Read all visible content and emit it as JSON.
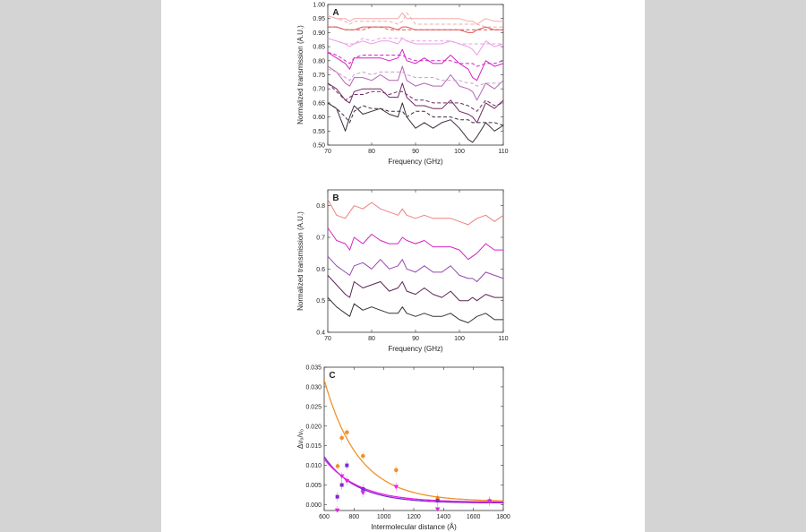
{
  "chart_data": [
    {
      "panel": "A",
      "type": "line",
      "xlabel": "Frequency (GHz)",
      "ylabel": "Normalized transmission (A.U.)",
      "xlim": [
        70,
        110
      ],
      "ylim": [
        0.5,
        1.0
      ],
      "xticks": [
        "70",
        "80",
        "90",
        "100",
        "110"
      ],
      "yticks": [
        "0.50",
        "0.55",
        "0.60",
        "0.65",
        "0.70",
        "0.75",
        "0.80",
        "0.85",
        "0.90",
        "0.95",
        "1.00"
      ],
      "x": [
        70,
        72,
        74,
        75,
        76,
        78,
        80,
        82,
        84,
        86,
        87,
        88,
        90,
        92,
        94,
        96,
        98,
        100,
        102,
        103,
        104,
        106,
        108,
        110
      ],
      "series": [
        {
          "color": "#3a2d3a",
          "style": "solid",
          "values": [
            0.65,
            0.63,
            0.55,
            0.6,
            0.64,
            0.61,
            0.62,
            0.63,
            0.61,
            0.6,
            0.65,
            0.6,
            0.56,
            0.58,
            0.56,
            0.58,
            0.59,
            0.56,
            0.52,
            0.51,
            0.53,
            0.58,
            0.55,
            0.57
          ]
        },
        {
          "color": "#3a2d3a",
          "style": "dashed",
          "values": [
            0.65,
            0.63,
            0.6,
            0.58,
            0.62,
            0.64,
            0.63,
            0.63,
            0.62,
            0.62,
            0.62,
            0.6,
            0.62,
            0.62,
            0.6,
            0.6,
            0.6,
            0.59,
            0.59,
            0.58,
            0.58,
            0.58,
            0.58,
            0.57
          ]
        },
        {
          "color": "#6e2a60",
          "style": "solid",
          "values": [
            0.72,
            0.7,
            0.66,
            0.65,
            0.69,
            0.7,
            0.7,
            0.7,
            0.67,
            0.67,
            0.72,
            0.67,
            0.64,
            0.64,
            0.63,
            0.63,
            0.66,
            0.62,
            0.61,
            0.6,
            0.58,
            0.65,
            0.63,
            0.66
          ]
        },
        {
          "color": "#6e2a60",
          "style": "dashed",
          "values": [
            0.72,
            0.69,
            0.66,
            0.67,
            0.68,
            0.68,
            0.69,
            0.69,
            0.68,
            0.69,
            0.69,
            0.68,
            0.66,
            0.66,
            0.65,
            0.65,
            0.65,
            0.65,
            0.64,
            0.63,
            0.62,
            0.66,
            0.64,
            0.65
          ]
        },
        {
          "color": "#b464b4",
          "style": "solid",
          "values": [
            0.78,
            0.76,
            0.72,
            0.71,
            0.74,
            0.74,
            0.73,
            0.75,
            0.73,
            0.73,
            0.78,
            0.73,
            0.71,
            0.72,
            0.71,
            0.71,
            0.75,
            0.71,
            0.7,
            0.69,
            0.66,
            0.72,
            0.7,
            0.73
          ]
        },
        {
          "color": "#c8a0c8",
          "style": "dashed",
          "values": [
            0.77,
            0.76,
            0.74,
            0.73,
            0.75,
            0.76,
            0.75,
            0.76,
            0.76,
            0.76,
            0.76,
            0.75,
            0.74,
            0.74,
            0.74,
            0.73,
            0.73,
            0.73,
            0.72,
            0.72,
            0.71,
            0.72,
            0.72,
            0.72
          ]
        },
        {
          "color": "#d424c4",
          "style": "solid",
          "values": [
            0.83,
            0.81,
            0.79,
            0.77,
            0.81,
            0.81,
            0.81,
            0.81,
            0.8,
            0.81,
            0.84,
            0.8,
            0.79,
            0.81,
            0.79,
            0.79,
            0.82,
            0.79,
            0.77,
            0.74,
            0.73,
            0.8,
            0.78,
            0.79
          ]
        },
        {
          "color": "#d424c4",
          "style": "dashed",
          "values": [
            0.83,
            0.82,
            0.8,
            0.79,
            0.81,
            0.82,
            0.82,
            0.82,
            0.82,
            0.82,
            0.82,
            0.81,
            0.8,
            0.8,
            0.8,
            0.8,
            0.8,
            0.79,
            0.79,
            0.79,
            0.78,
            0.79,
            0.79,
            0.8
          ]
        },
        {
          "color": "#ec9ce4",
          "style": "solid",
          "values": [
            0.88,
            0.87,
            0.86,
            0.85,
            0.86,
            0.87,
            0.86,
            0.87,
            0.87,
            0.86,
            0.88,
            0.87,
            0.86,
            0.86,
            0.86,
            0.86,
            0.87,
            0.86,
            0.85,
            0.84,
            0.82,
            0.87,
            0.85,
            0.86
          ]
        },
        {
          "color": "#ec9ce4",
          "style": "dashed",
          "values": [
            0.88,
            0.87,
            0.86,
            0.86,
            0.86,
            0.88,
            0.87,
            0.88,
            0.88,
            0.88,
            0.88,
            0.87,
            0.87,
            0.87,
            0.87,
            0.87,
            0.87,
            0.86,
            0.86,
            0.86,
            0.86,
            0.86,
            0.86,
            0.86
          ]
        },
        {
          "color": "#e05454",
          "style": "solid",
          "values": [
            0.92,
            0.92,
            0.91,
            0.91,
            0.91,
            0.92,
            0.92,
            0.92,
            0.92,
            0.91,
            0.92,
            0.92,
            0.91,
            0.91,
            0.91,
            0.91,
            0.91,
            0.91,
            0.9,
            0.9,
            0.91,
            0.92,
            0.91,
            0.91
          ]
        },
        {
          "color": "#e05454",
          "style": "dashed",
          "values": [
            0.92,
            0.92,
            0.91,
            0.91,
            0.91,
            0.91,
            0.92,
            0.92,
            0.91,
            0.91,
            0.91,
            0.91,
            0.91,
            0.91,
            0.91,
            0.91,
            0.91,
            0.91,
            0.91,
            0.91,
            0.91,
            0.91,
            0.91,
            0.91
          ]
        },
        {
          "color": "#f4a8a8",
          "style": "solid",
          "values": [
            0.96,
            0.95,
            0.95,
            0.94,
            0.95,
            0.95,
            0.95,
            0.95,
            0.95,
            0.95,
            0.97,
            0.95,
            0.95,
            0.95,
            0.95,
            0.95,
            0.95,
            0.95,
            0.94,
            0.94,
            0.93,
            0.95,
            0.94,
            0.94
          ]
        },
        {
          "color": "#f4a8a8",
          "style": "dashed",
          "values": [
            0.96,
            0.95,
            0.94,
            0.93,
            0.94,
            0.94,
            0.94,
            0.94,
            0.94,
            0.93,
            0.94,
            0.97,
            0.93,
            0.93,
            0.93,
            0.93,
            0.93,
            0.93,
            0.93,
            0.93,
            0.93,
            0.92,
            0.92,
            0.92
          ]
        }
      ]
    },
    {
      "panel": "B",
      "type": "line",
      "xlabel": "Frequency (GHz)",
      "ylabel": "Normalized transmission (A.U.)",
      "xlim": [
        70,
        110
      ],
      "ylim": [
        0.4,
        0.85
      ],
      "xticks": [
        "70",
        "80",
        "90",
        "100",
        "110"
      ],
      "yticks": [
        "0.4",
        "0.5",
        "0.6",
        "0.7",
        "0.8"
      ],
      "x": [
        70,
        72,
        74,
        75,
        76,
        78,
        80,
        82,
        84,
        86,
        87,
        88,
        90,
        92,
        94,
        96,
        98,
        100,
        102,
        103,
        104,
        106,
        108,
        110
      ],
      "series": [
        {
          "color": "#f08080",
          "style": "solid",
          "values": [
            0.82,
            0.77,
            0.76,
            0.78,
            0.8,
            0.79,
            0.81,
            0.79,
            0.78,
            0.77,
            0.79,
            0.77,
            0.76,
            0.77,
            0.76,
            0.76,
            0.76,
            0.75,
            0.74,
            0.75,
            0.76,
            0.77,
            0.75,
            0.77
          ]
        },
        {
          "color": "#d424c4",
          "style": "solid",
          "values": [
            0.73,
            0.69,
            0.68,
            0.66,
            0.7,
            0.68,
            0.71,
            0.69,
            0.68,
            0.68,
            0.7,
            0.69,
            0.68,
            0.69,
            0.67,
            0.67,
            0.67,
            0.66,
            0.63,
            0.64,
            0.65,
            0.68,
            0.66,
            0.66
          ]
        },
        {
          "color": "#9448b0",
          "style": "solid",
          "values": [
            0.64,
            0.61,
            0.59,
            0.58,
            0.61,
            0.62,
            0.6,
            0.63,
            0.6,
            0.61,
            0.63,
            0.6,
            0.59,
            0.61,
            0.59,
            0.59,
            0.61,
            0.58,
            0.57,
            0.57,
            0.56,
            0.59,
            0.58,
            0.57
          ]
        },
        {
          "color": "#5e2456",
          "style": "solid",
          "values": [
            0.58,
            0.55,
            0.52,
            0.51,
            0.56,
            0.54,
            0.55,
            0.56,
            0.53,
            0.54,
            0.56,
            0.53,
            0.52,
            0.54,
            0.52,
            0.51,
            0.53,
            0.5,
            0.5,
            0.51,
            0.5,
            0.52,
            0.51,
            0.51
          ]
        },
        {
          "color": "#333333",
          "style": "solid",
          "values": [
            0.51,
            0.48,
            0.46,
            0.45,
            0.49,
            0.47,
            0.48,
            0.47,
            0.46,
            0.46,
            0.48,
            0.46,
            0.45,
            0.46,
            0.45,
            0.45,
            0.46,
            0.44,
            0.43,
            0.44,
            0.45,
            0.46,
            0.44,
            0.44
          ]
        }
      ]
    },
    {
      "panel": "C",
      "type": "scatter",
      "xlabel": "Intermolecular distance (Å)",
      "ylabel": "Δν₀/ν₀",
      "xlim": [
        600,
        1800
      ],
      "ylim": [
        -0.0015,
        0.035
      ],
      "xticks": [
        "600",
        "800",
        "1000",
        "1200",
        "1400",
        "1600",
        "1800"
      ],
      "yticks": [
        "0.000",
        "0.005",
        "0.010",
        "0.015",
        "0.020",
        "0.025",
        "0.030",
        "0.035"
      ],
      "series": [
        {
          "name": "orange",
          "marker": "circle",
          "color": "#f0922a",
          "x": [
            690,
            718,
            752,
            860,
            1082,
            1360,
            1708
          ],
          "y": [
            0.0098,
            0.017,
            0.0184,
            0.0124,
            0.0088,
            0.0017,
            0.001
          ],
          "fit": {
            "a": 0.031,
            "t": 230,
            "c": 0.0008
          }
        },
        {
          "name": "purple",
          "marker": "square",
          "color": "#7a2ad8",
          "x": [
            688,
            718,
            752,
            860,
            1360
          ],
          "y": [
            0.002,
            0.005,
            0.01,
            0.004,
            0.001
          ],
          "fit": {
            "a": 0.0118,
            "t": 215,
            "c": 0.0004
          }
        },
        {
          "name": "magenta",
          "marker": "triangle",
          "color": "#e820e0",
          "x": [
            688,
            718,
            752,
            860,
            1082,
            1360,
            1708
          ],
          "y": [
            -0.0015,
            0.0072,
            0.006,
            0.003,
            0.0045,
            -0.0012,
            0.0008
          ],
          "fit": {
            "a": 0.011,
            "t": 235,
            "c": 0.0006
          }
        }
      ]
    }
  ]
}
